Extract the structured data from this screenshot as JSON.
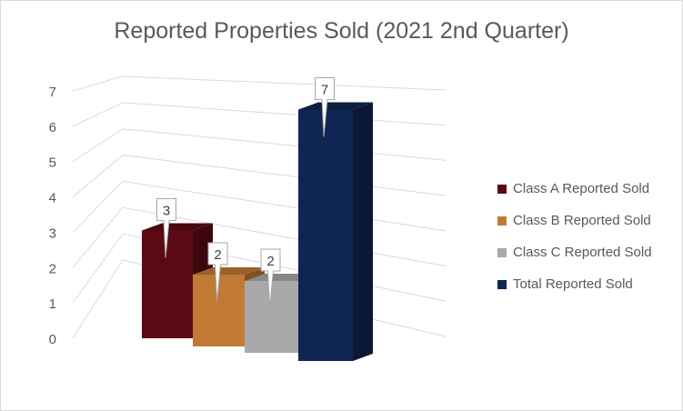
{
  "chart_data": {
    "type": "bar",
    "title": "Reported Properties Sold (2021 2nd Quarter)",
    "ylim": [
      0,
      7
    ],
    "yticks": [
      "0",
      "1",
      "2",
      "3",
      "4",
      "5",
      "6",
      "7"
    ],
    "grid": true,
    "legend_position": "right",
    "series": [
      {
        "name": "Class A Reported Sold",
        "value": 3,
        "label": "3",
        "color": "#5b0a14"
      },
      {
        "name": "Class B Reported Sold",
        "value": 2,
        "label": "2",
        "color": "#c07a34"
      },
      {
        "name": "Class C Reported Sold",
        "value": 2,
        "label": "2",
        "color": "#a9a9a9"
      },
      {
        "name": "Total Reported Sold",
        "value": 7,
        "label": "7",
        "color": "#0f2553"
      }
    ]
  }
}
